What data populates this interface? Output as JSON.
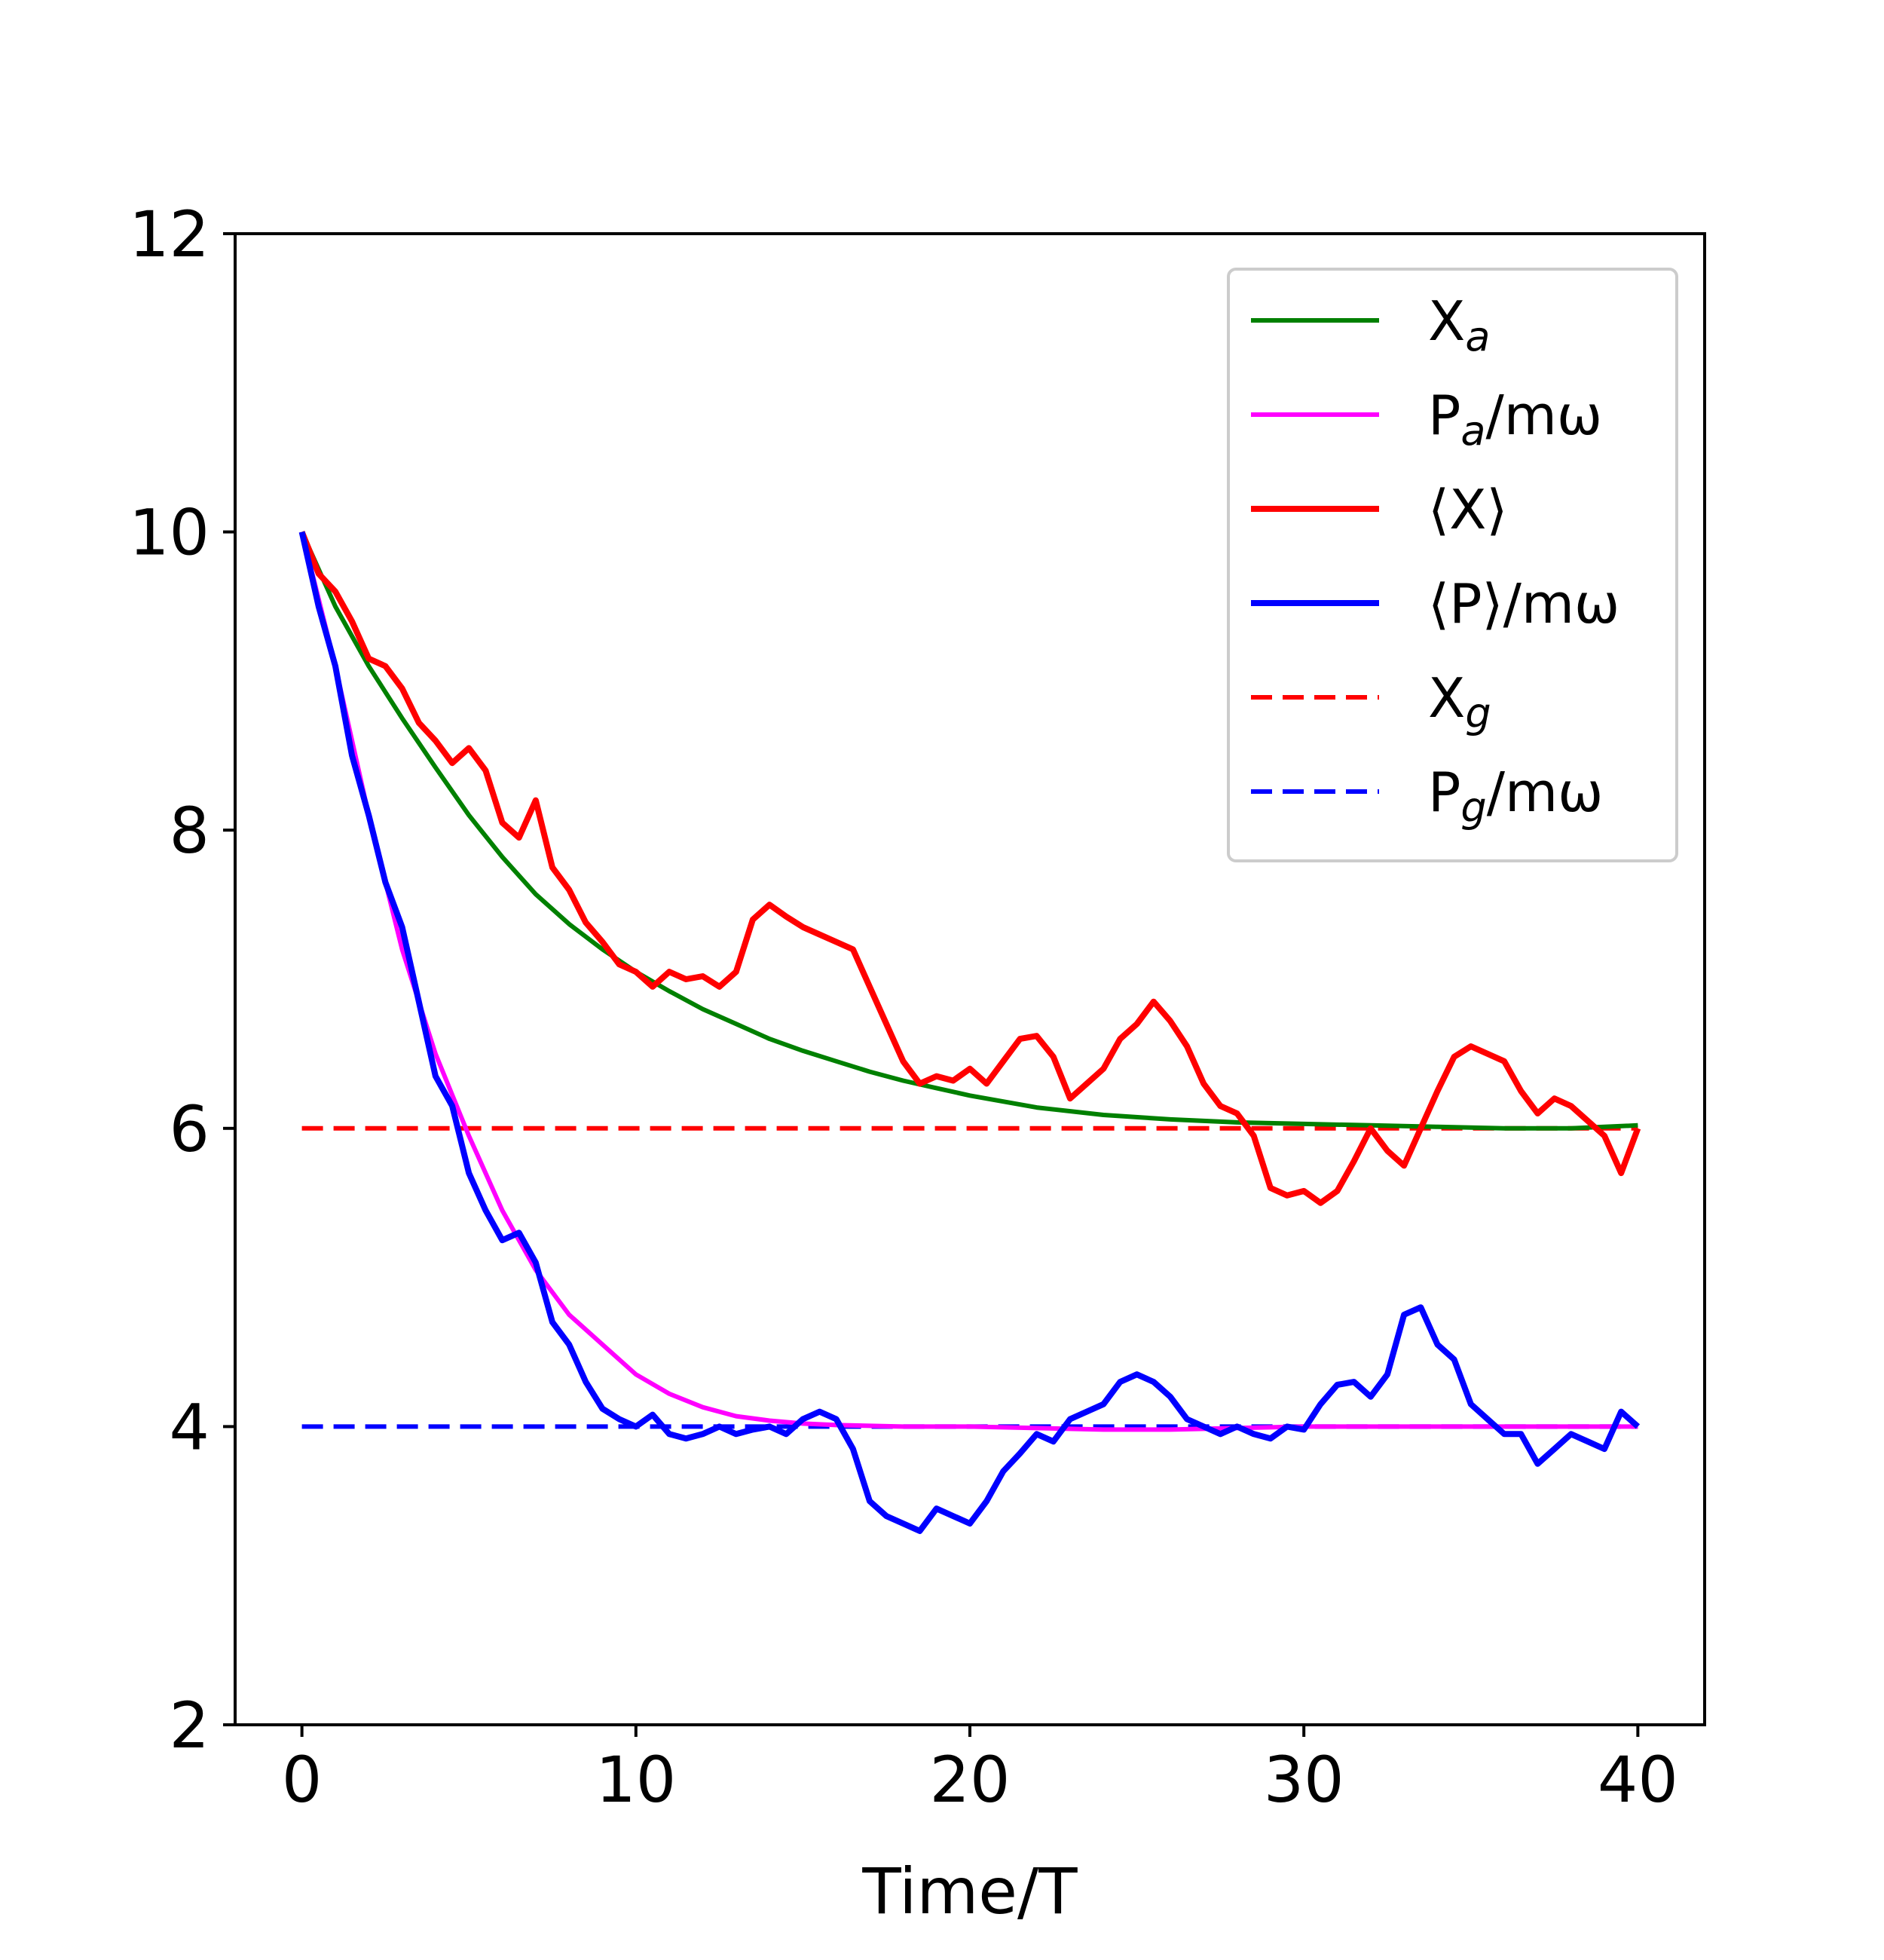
{
  "chart_data": {
    "type": "line",
    "title": "",
    "xlabel": "Time/T",
    "ylabel": "",
    "xlim": [
      -2,
      42
    ],
    "ylim": [
      2,
      12
    ],
    "x_ticks": [
      "0",
      "10",
      "20",
      "30",
      "40"
    ],
    "y_ticks": [
      "2",
      "4",
      "6",
      "8",
      "10",
      "12"
    ],
    "grid": false,
    "legend_position": "top-right",
    "series": [
      {
        "id": "Xa",
        "name": "X",
        "sub": "a",
        "suffix": "",
        "color": "#008000",
        "style": "solid",
        "width": 6,
        "x": [
          0,
          1,
          2,
          3,
          4,
          5,
          6,
          7,
          8,
          9,
          10,
          11,
          12,
          13,
          14,
          15,
          16,
          17,
          18,
          19,
          20,
          22,
          24,
          26,
          28,
          30,
          32,
          34,
          36,
          38,
          40
        ],
        "y": [
          10,
          9.5,
          9.1,
          8.75,
          8.42,
          8.1,
          7.82,
          7.57,
          7.37,
          7.2,
          7.05,
          6.92,
          6.8,
          6.7,
          6.6,
          6.52,
          6.45,
          6.38,
          6.32,
          6.27,
          6.22,
          6.14,
          6.09,
          6.06,
          6.04,
          6.03,
          6.02,
          6.01,
          6.0,
          6.0,
          6.02
        ]
      },
      {
        "id": "Pa",
        "name": "P",
        "sub": "a",
        "suffix": "/mω",
        "color": "#ff00ff",
        "style": "solid",
        "width": 6,
        "x": [
          0,
          1,
          2,
          3,
          4,
          5,
          6,
          7,
          8,
          9,
          10,
          11,
          12,
          13,
          14,
          15,
          16,
          18,
          20,
          22,
          24,
          26,
          28,
          30,
          32,
          34,
          36,
          38,
          40
        ],
        "y": [
          10,
          9.1,
          8.1,
          7.2,
          6.5,
          5.95,
          5.45,
          5.05,
          4.75,
          4.55,
          4.35,
          4.22,
          4.13,
          4.07,
          4.04,
          4.02,
          4.01,
          4.0,
          4.0,
          3.99,
          3.98,
          3.98,
          3.99,
          4.0,
          4.0,
          4.0,
          4.0,
          4.0,
          4.0
        ]
      },
      {
        "id": "X",
        "name": "⟨X⟩",
        "sub": "",
        "suffix": "",
        "color": "#ff0000",
        "style": "solid",
        "width": 8,
        "x": [
          0,
          0.5,
          1,
          1.5,
          2,
          2.5,
          3,
          3.5,
          4,
          4.5,
          5,
          5.5,
          6,
          6.5,
          7,
          7.5,
          8,
          8.5,
          9,
          9.5,
          10,
          10.5,
          11,
          11.5,
          12,
          12.5,
          13,
          13.5,
          14,
          14.5,
          15,
          15.5,
          16,
          16.5,
          17,
          17.5,
          18,
          18.5,
          19,
          19.5,
          20,
          20.5,
          21,
          21.5,
          22,
          22.5,
          23,
          23.5,
          24,
          24.5,
          25,
          25.5,
          26,
          26.5,
          27,
          27.5,
          28,
          28.5,
          29,
          29.5,
          30,
          30.5,
          31,
          31.5,
          32,
          32.5,
          33,
          33.5,
          34,
          34.5,
          35,
          35.5,
          36,
          36.5,
          37,
          37.5,
          38,
          38.5,
          39,
          39.5,
          40
        ],
        "y": [
          10,
          9.72,
          9.6,
          9.4,
          9.15,
          9.1,
          8.95,
          8.72,
          8.6,
          8.45,
          8.55,
          8.4,
          8.05,
          7.95,
          8.2,
          7.75,
          7.6,
          7.38,
          7.25,
          7.1,
          7.05,
          6.95,
          7.05,
          7.0,
          7.02,
          6.95,
          7.05,
          7.4,
          7.5,
          7.42,
          7.35,
          7.3,
          7.25,
          7.2,
          6.95,
          6.7,
          6.45,
          6.3,
          6.35,
          6.32,
          6.4,
          6.3,
          6.45,
          6.6,
          6.62,
          6.48,
          6.2,
          6.3,
          6.4,
          6.6,
          6.7,
          6.85,
          6.72,
          6.55,
          6.3,
          6.15,
          6.1,
          5.95,
          5.6,
          5.55,
          5.58,
          5.5,
          5.58,
          5.78,
          6.0,
          5.85,
          5.75,
          6.0,
          6.25,
          6.48,
          6.55,
          6.5,
          6.45,
          6.25,
          6.1,
          6.2,
          6.15,
          6.05,
          5.95,
          5.7,
          6.0
        ]
      },
      {
        "id": "P",
        "name": "⟨P⟩",
        "sub": "",
        "suffix": "/mω",
        "color": "#0000ff",
        "style": "solid",
        "width": 8,
        "x": [
          0,
          0.5,
          1,
          1.5,
          2,
          2.5,
          3,
          3.5,
          4,
          4.5,
          5,
          5.5,
          6,
          6.5,
          7,
          7.5,
          8,
          8.5,
          9,
          9.5,
          10,
          10.5,
          11,
          11.5,
          12,
          12.5,
          13,
          13.5,
          14,
          14.5,
          15,
          15.5,
          16,
          16.5,
          17,
          17.5,
          18,
          18.5,
          19,
          19.5,
          20,
          20.5,
          21,
          21.5,
          22,
          22.5,
          23,
          23.5,
          24,
          24.5,
          25,
          25.5,
          26,
          26.5,
          27,
          27.5,
          28,
          28.5,
          29,
          29.5,
          30,
          30.5,
          31,
          31.5,
          32,
          32.5,
          33,
          33.5,
          34,
          34.5,
          35,
          35.5,
          36,
          36.5,
          37,
          37.5,
          38,
          38.5,
          39,
          39.5,
          40
        ],
        "y": [
          10,
          9.5,
          9.1,
          8.5,
          8.1,
          7.65,
          7.35,
          6.85,
          6.35,
          6.15,
          5.7,
          5.45,
          5.25,
          5.3,
          5.1,
          4.7,
          4.55,
          4.3,
          4.12,
          4.05,
          4.0,
          4.08,
          3.95,
          3.92,
          3.95,
          4.0,
          3.95,
          3.98,
          4.0,
          3.95,
          4.05,
          4.1,
          4.05,
          3.85,
          3.5,
          3.4,
          3.35,
          3.3,
          3.45,
          3.4,
          3.35,
          3.5,
          3.7,
          3.82,
          3.95,
          3.9,
          4.05,
          4.1,
          4.15,
          4.3,
          4.35,
          4.3,
          4.2,
          4.05,
          4.0,
          3.95,
          4.0,
          3.95,
          3.92,
          4.0,
          3.98,
          4.15,
          4.28,
          4.3,
          4.2,
          4.35,
          4.75,
          4.8,
          4.55,
          4.45,
          4.15,
          4.05,
          3.95,
          3.95,
          3.75,
          3.85,
          3.95,
          3.9,
          3.85,
          4.1,
          4.0
        ]
      },
      {
        "id": "Xg",
        "name": "X",
        "sub": "g",
        "suffix": "",
        "color": "#ff0000",
        "style": "dashed",
        "width": 6,
        "x": [
          0,
          40
        ],
        "y": [
          6,
          6
        ]
      },
      {
        "id": "Pg",
        "name": "P",
        "sub": "g",
        "suffix": "/mω",
        "color": "#0000ff",
        "style": "dashed",
        "width": 6,
        "x": [
          0,
          40
        ],
        "y": [
          4,
          4
        ]
      }
    ]
  }
}
